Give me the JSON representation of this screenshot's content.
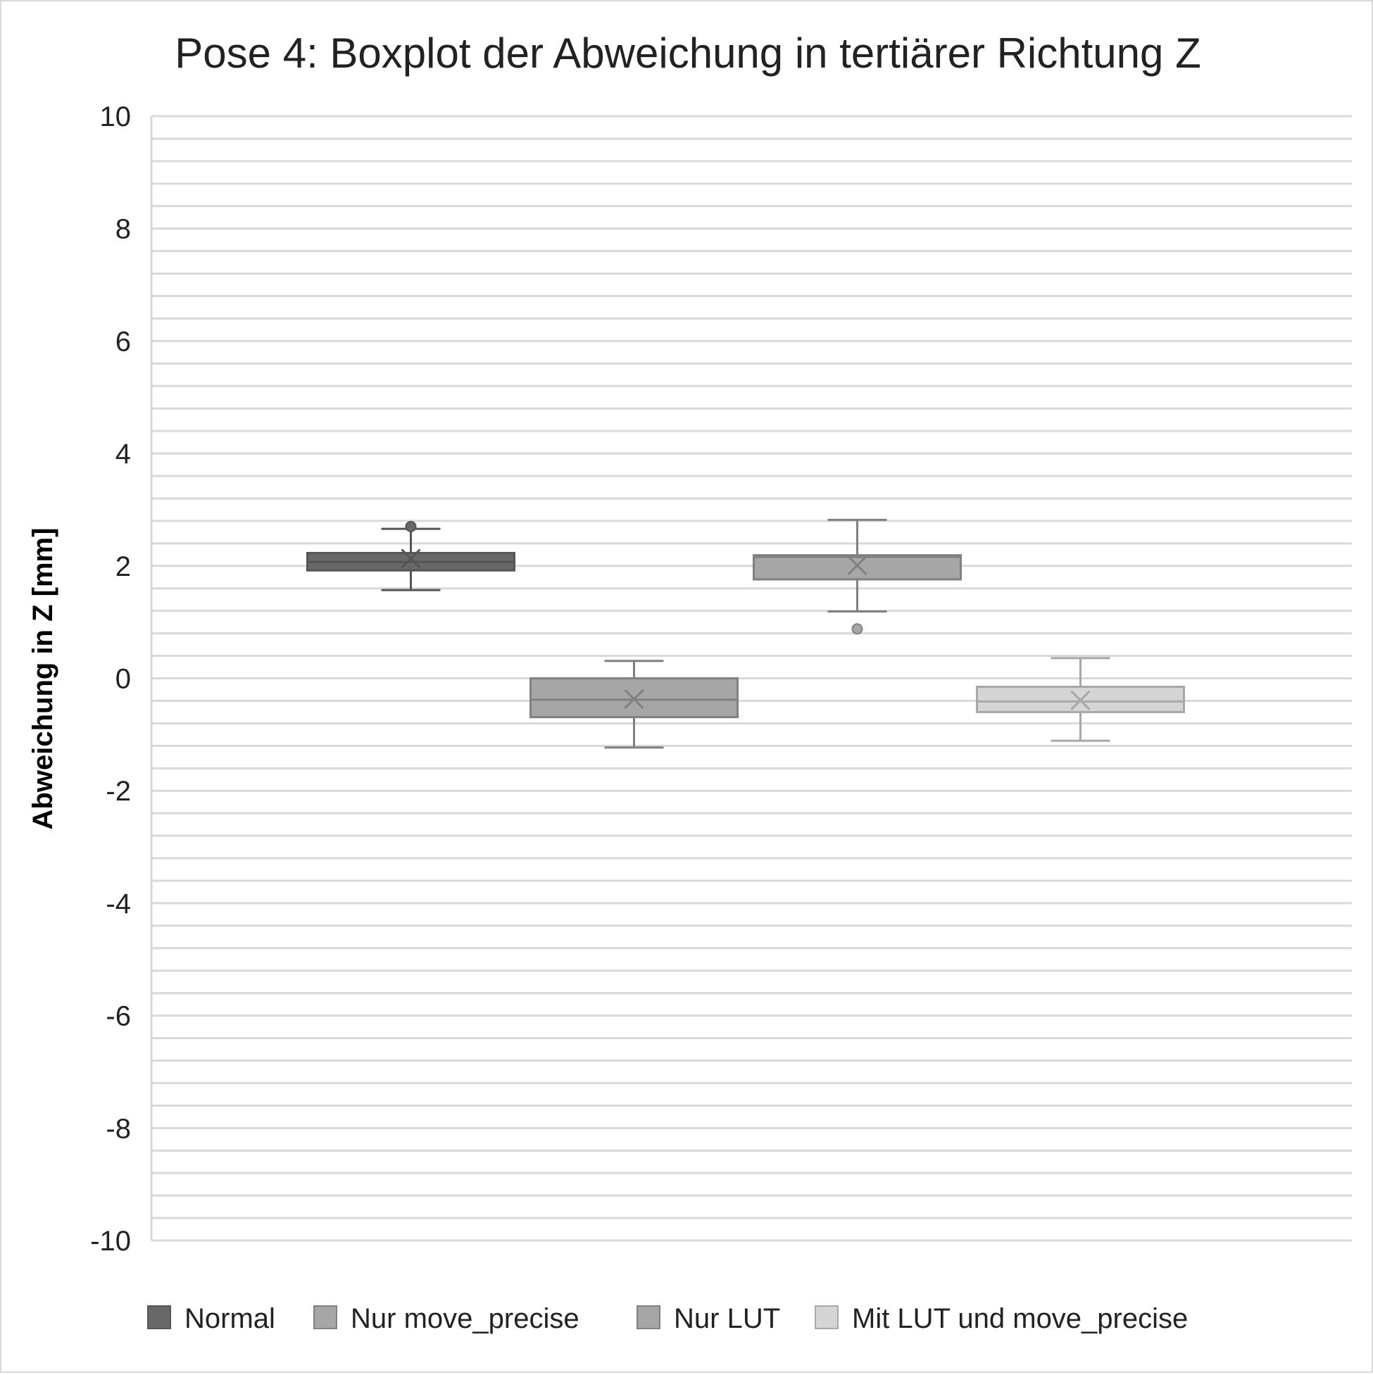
{
  "chart_data": {
    "type": "box",
    "title": "Pose 4: Boxplot der Abweichung in tertiärer Richtung Z",
    "xlabel": "",
    "ylabel": "Abweichung in Z [mm]",
    "ylim": [
      -10,
      10
    ],
    "yticks": [
      10,
      8,
      6,
      4,
      2,
      0,
      -2,
      -4,
      -6,
      -8,
      -10
    ],
    "minor_step": 0.4,
    "grid": true,
    "legend_position": "bottom",
    "series": [
      {
        "name": "Normal",
        "color": "#686868",
        "whisker_low": 1.57,
        "q1": 1.92,
        "median": 2.07,
        "q3": 2.23,
        "whisker_high": 2.66,
        "mean": 2.13,
        "outliers": [
          2.7
        ]
      },
      {
        "name": "Nur move_precise",
        "color": "#a6a6a6",
        "whisker_low": -1.23,
        "q1": -0.69,
        "median": -0.38,
        "q3": 0.0,
        "whisker_high": 0.31,
        "mean": -0.37,
        "outliers": []
      },
      {
        "name": "Nur LUT",
        "color": "#a6a6a6",
        "whisker_low": 1.19,
        "q1": 1.76,
        "median": 2.16,
        "q3": 2.19,
        "whisker_high": 2.82,
        "mean": 2.01,
        "outliers": [
          0.88
        ]
      },
      {
        "name": "Mit LUT und move_precise",
        "color": "#d5d5d5",
        "whisker_low": -1.11,
        "q1": -0.6,
        "median": -0.41,
        "q3": -0.15,
        "whisker_high": 0.36,
        "mean": -0.39,
        "outliers": []
      }
    ]
  }
}
